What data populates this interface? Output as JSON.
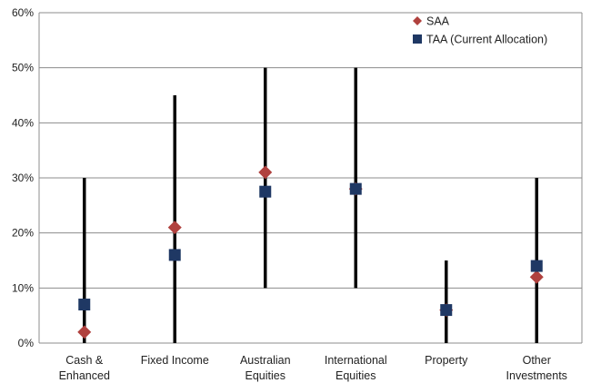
{
  "chart_data": {
    "type": "scatter",
    "categories": [
      [
        "Cash &",
        "Enhanced"
      ],
      [
        "Fixed Income"
      ],
      [
        "Australian",
        "Equities"
      ],
      [
        "International",
        "Equities"
      ],
      [
        "Property"
      ],
      [
        "Other",
        "Investments"
      ]
    ],
    "range_low": [
      0,
      0,
      10,
      10,
      0,
      0
    ],
    "range_high": [
      30,
      45,
      50,
      50,
      15,
      30
    ],
    "series": [
      {
        "name": "SAA",
        "marker": "diamond",
        "color": "#b0413e",
        "values": [
          2,
          21,
          31,
          28,
          6,
          12
        ]
      },
      {
        "name": "TAA (Current Allocation)",
        "marker": "square",
        "color": "#1f3864",
        "values": [
          7,
          16,
          27.5,
          28,
          6,
          14
        ]
      }
    ],
    "y_ticks": [
      "0%",
      "10%",
      "20%",
      "30%",
      "40%",
      "50%",
      "60%"
    ],
    "ylim": [
      0,
      60
    ],
    "grid": true,
    "legend_position": "top-right"
  }
}
